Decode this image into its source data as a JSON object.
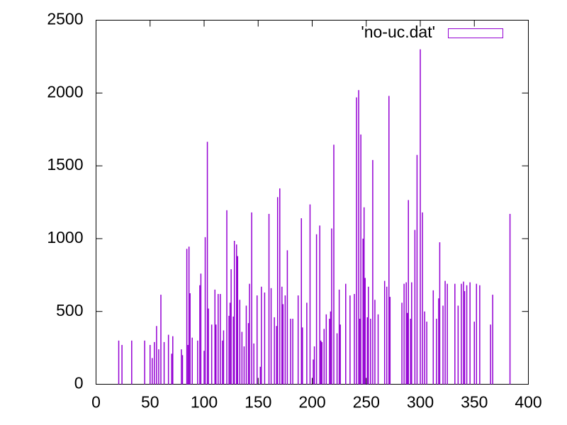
{
  "chart_data": {
    "type": "bar",
    "legend": "top-right",
    "series": [
      {
        "name": "'no-uc.dat'",
        "color": "#9400d3",
        "x": [
          21,
          24,
          33,
          45,
          50,
          52,
          54,
          56,
          58,
          60,
          63,
          67,
          70,
          71,
          79,
          80,
          84,
          85,
          86,
          87,
          89,
          94,
          96,
          97,
          100,
          101,
          103,
          104,
          107,
          110,
          111,
          113,
          115,
          117,
          118,
          121,
          123,
          124,
          125,
          127,
          128,
          130,
          131,
          133,
          135,
          137,
          139,
          141,
          142,
          144,
          146,
          149,
          152,
          153,
          156,
          160,
          162,
          165,
          167,
          168,
          170,
          172,
          173,
          175,
          177,
          180,
          182,
          187,
          190,
          191,
          195,
          198,
          201,
          202,
          204,
          207,
          208,
          209,
          211,
          213,
          216,
          217,
          218,
          220,
          223,
          225,
          226,
          231,
          235,
          239,
          241,
          243,
          244,
          245,
          247,
          248,
          249,
          251,
          252,
          254,
          256,
          258,
          261,
          267,
          269,
          271,
          272,
          283,
          285,
          287,
          288,
          289,
          291,
          292,
          295,
          297,
          300,
          302,
          304,
          306,
          312,
          315,
          317,
          318,
          321,
          323,
          325,
          332,
          335,
          338,
          340,
          341,
          343,
          346,
          350,
          352,
          355,
          365,
          367,
          383
        ],
        "values": [
          300,
          270,
          300,
          300,
          270,
          180,
          290,
          400,
          240,
          615,
          290,
          340,
          210,
          330,
          240,
          200,
          930,
          270,
          945,
          625,
          320,
          300,
          680,
          760,
          230,
          1010,
          1665,
          520,
          410,
          650,
          410,
          620,
          620,
          300,
          370,
          1195,
          470,
          560,
          790,
          465,
          985,
          960,
          880,
          580,
          360,
          260,
          540,
          420,
          690,
          1180,
          280,
          610,
          120,
          670,
          630,
          1170,
          660,
          460,
          400,
          1285,
          1345,
          670,
          550,
          610,
          920,
          450,
          450,
          610,
          1140,
          390,
          560,
          1235,
          170,
          260,
          1030,
          1090,
          300,
          290,
          380,
          480,
          450,
          500,
          1070,
          1645,
          350,
          650,
          410,
          690,
          610,
          620,
          1970,
          2020,
          450,
          1715,
          1000,
          1215,
          730,
          460,
          670,
          450,
          1540,
          580,
          480,
          710,
          670,
          1980,
          600,
          560,
          690,
          700,
          490,
          1265,
          450,
          700,
          1060,
          1575,
          2300,
          1180,
          500,
          430,
          645,
          450,
          590,
          975,
          540,
          710,
          690,
          690,
          540,
          690,
          705,
          640,
          680,
          700,
          430,
          690,
          680,
          410,
          615,
          1170
        ]
      }
    ],
    "xlim": [
      0,
      400
    ],
    "xticks": [
      0,
      50,
      100,
      150,
      200,
      250,
      300,
      350,
      400
    ],
    "ylim": [
      0,
      2500
    ],
    "yticks": [
      0,
      500,
      1000,
      1500,
      2000,
      2500
    ]
  }
}
